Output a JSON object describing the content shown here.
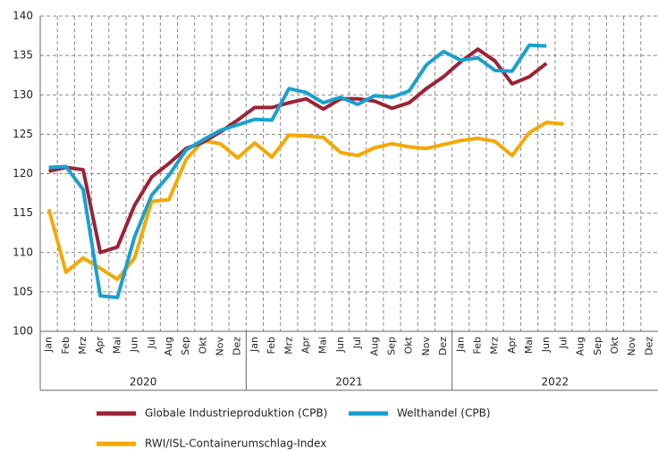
{
  "chart_data": {
    "type": "line",
    "categories": [
      "Jan",
      "Feb",
      "Mrz",
      "Apr",
      "Mai",
      "Jun",
      "Jul",
      "Aug",
      "Sep",
      "Okt",
      "Nov",
      "Dez",
      "Jan",
      "Feb",
      "Mrz",
      "Apr",
      "Mai",
      "Jun",
      "Jul",
      "Aug",
      "Sep",
      "Okt",
      "Nov",
      "Dez",
      "Jan",
      "Feb",
      "Mrz",
      "Apr",
      "Mai",
      "Jun",
      "Jul",
      "Aug",
      "Sep",
      "Okt",
      "Nov",
      "Dez"
    ],
    "x_groups": [
      "2020",
      "2021",
      "2022"
    ],
    "series": [
      {
        "name": "Globale Industrieproduktion (CPB)",
        "color": "#9b2335",
        "values": [
          120.3,
          120.8,
          120.5,
          110,
          110.7,
          116,
          119.6,
          121.3,
          123.2,
          124,
          125.3,
          126.8,
          128.4,
          128.4,
          129,
          129.5,
          128.2,
          129.5,
          129.5,
          129.2,
          128.3,
          129,
          130.8,
          132.3,
          134.2,
          135.8,
          134.3,
          131.4,
          132.3,
          134,
          null,
          null,
          null,
          null,
          null,
          null
        ]
      },
      {
        "name": "Welthandel (CPB)",
        "color": "#1aa0cf",
        "values": [
          120.8,
          120.9,
          118,
          104.5,
          104.3,
          112,
          117.3,
          119.8,
          123,
          124.3,
          125.5,
          126.2,
          126.9,
          126.8,
          130.8,
          130.3,
          129,
          129.7,
          128.8,
          129.9,
          129.7,
          130.5,
          133.8,
          135.5,
          134.4,
          134.7,
          133.1,
          133,
          136.3,
          136.2,
          null,
          null,
          null,
          null,
          null,
          null
        ]
      },
      {
        "name": "RWI/ISL-Containerumschlag-Index",
        "color": "#f5a800",
        "values": [
          115.5,
          107.5,
          109.3,
          108,
          106.6,
          109.3,
          116.5,
          116.7,
          121.8,
          124.2,
          123.8,
          122,
          123.9,
          122.1,
          124.9,
          124.8,
          124.6,
          122.7,
          122.3,
          123.3,
          123.8,
          123.4,
          123.2,
          123.7,
          124.2,
          124.5,
          124.1,
          122.3,
          125.2,
          126.5,
          126.3,
          null,
          null,
          null,
          null,
          null
        ]
      }
    ],
    "ylim": [
      100,
      140
    ],
    "yticks": [
      100,
      105,
      110,
      115,
      120,
      125,
      130,
      135,
      140
    ],
    "grid": true
  }
}
